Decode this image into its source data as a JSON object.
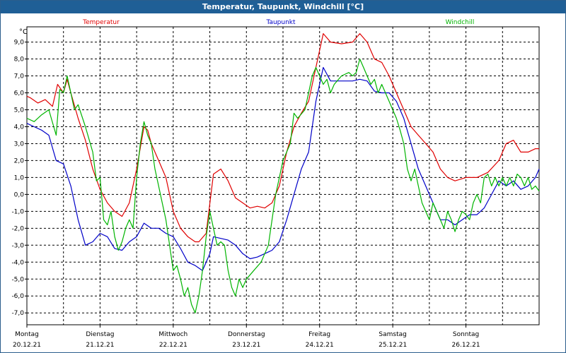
{
  "window": {
    "title": "Temperatur, Taupunkt, Windchill [°C]"
  },
  "chart_data": {
    "type": "line",
    "title": "Temperatur, Taupunkt, Windchill [°C]",
    "ylabel": "°C",
    "ylim": [
      -7.7,
      9.9
    ],
    "yticks": [
      "9,0",
      "8,0",
      "7,0",
      "6,0",
      "5,0",
      "4,0",
      "3,0",
      "2,0",
      "1,0",
      "0,0",
      "-1,0",
      "-2,0",
      "-3,0",
      "-4,0",
      "-5,0",
      "-6,0",
      "-7,0"
    ],
    "xlim": [
      0,
      7
    ],
    "days": [
      {
        "weekday": "Montag",
        "date": "20.12.21"
      },
      {
        "weekday": "Dienstag",
        "date": "21.12.21"
      },
      {
        "weekday": "Mittwoch",
        "date": "22.12.21"
      },
      {
        "weekday": "Donnerstag",
        "date": "23.12.21"
      },
      {
        "weekday": "Freitag",
        "date": "24.12.21"
      },
      {
        "weekday": "Samstag",
        "date": "25.12.21"
      },
      {
        "weekday": "Sonntag",
        "date": "26.12.21"
      }
    ],
    "grid": true,
    "series": [
      {
        "name": "Temperatur",
        "color": "#e00000",
        "points": [
          [
            0,
            5.8
          ],
          [
            0.05,
            5.7
          ],
          [
            0.15,
            5.4
          ],
          [
            0.25,
            5.6
          ],
          [
            0.35,
            5.2
          ],
          [
            0.42,
            6.5
          ],
          [
            0.5,
            6.0
          ],
          [
            0.55,
            6.8
          ],
          [
            0.6,
            6.0
          ],
          [
            0.7,
            4.5
          ],
          [
            0.8,
            3.2
          ],
          [
            0.9,
            1.5
          ],
          [
            1.0,
            0.3
          ],
          [
            1.1,
            -0.5
          ],
          [
            1.2,
            -1.0
          ],
          [
            1.3,
            -1.3
          ],
          [
            1.4,
            -0.5
          ],
          [
            1.5,
            1.5
          ],
          [
            1.6,
            4.0
          ],
          [
            1.65,
            3.8
          ],
          [
            1.7,
            3.0
          ],
          [
            1.8,
            2.0
          ],
          [
            1.9,
            1.0
          ],
          [
            2.0,
            -1.0
          ],
          [
            2.1,
            -2.0
          ],
          [
            2.2,
            -2.5
          ],
          [
            2.3,
            -2.8
          ],
          [
            2.35,
            -2.8
          ],
          [
            2.45,
            -2.3
          ],
          [
            2.55,
            1.2
          ],
          [
            2.65,
            1.5
          ],
          [
            2.75,
            0.8
          ],
          [
            2.85,
            -0.2
          ],
          [
            2.95,
            -0.5
          ],
          [
            3.05,
            -0.8
          ],
          [
            3.15,
            -0.7
          ],
          [
            3.25,
            -0.8
          ],
          [
            3.35,
            -0.5
          ],
          [
            3.45,
            0.5
          ],
          [
            3.55,
            2.5
          ],
          [
            3.65,
            4.0
          ],
          [
            3.75,
            4.8
          ],
          [
            3.85,
            5.5
          ],
          [
            3.95,
            7.5
          ],
          [
            4.05,
            9.5
          ],
          [
            4.15,
            9.0
          ],
          [
            4.3,
            8.9
          ],
          [
            4.45,
            9.0
          ],
          [
            4.55,
            9.5
          ],
          [
            4.65,
            9.0
          ],
          [
            4.75,
            8.0
          ],
          [
            4.85,
            7.8
          ],
          [
            4.95,
            7.0
          ],
          [
            5.05,
            6.0
          ],
          [
            5.15,
            5.0
          ],
          [
            5.25,
            4.0
          ],
          [
            5.35,
            3.5
          ],
          [
            5.45,
            3.0
          ],
          [
            5.55,
            2.5
          ],
          [
            5.65,
            1.5
          ],
          [
            5.75,
            1.0
          ],
          [
            5.85,
            0.8
          ],
          [
            6.0,
            1.0
          ],
          [
            6.15,
            1.0
          ],
          [
            6.3,
            1.3
          ],
          [
            6.45,
            2.0
          ],
          [
            6.55,
            3.0
          ],
          [
            6.65,
            3.2
          ],
          [
            6.75,
            2.5
          ],
          [
            6.85,
            2.5
          ],
          [
            6.95,
            2.7
          ],
          [
            7.0,
            2.7
          ]
        ]
      },
      {
        "name": "Taupunkt",
        "color": "#0000c8",
        "points": [
          [
            0,
            4.2
          ],
          [
            0.1,
            4.0
          ],
          [
            0.2,
            3.8
          ],
          [
            0.3,
            3.5
          ],
          [
            0.4,
            2.0
          ],
          [
            0.5,
            1.8
          ],
          [
            0.6,
            0.5
          ],
          [
            0.7,
            -1.5
          ],
          [
            0.8,
            -3.0
          ],
          [
            0.9,
            -2.8
          ],
          [
            1.0,
            -2.3
          ],
          [
            1.1,
            -2.5
          ],
          [
            1.2,
            -3.2
          ],
          [
            1.3,
            -3.3
          ],
          [
            1.4,
            -2.8
          ],
          [
            1.5,
            -2.5
          ],
          [
            1.6,
            -1.7
          ],
          [
            1.7,
            -2.0
          ],
          [
            1.8,
            -2.0
          ],
          [
            1.9,
            -2.3
          ],
          [
            2.0,
            -2.5
          ],
          [
            2.1,
            -3.2
          ],
          [
            2.2,
            -4.0
          ],
          [
            2.3,
            -4.2
          ],
          [
            2.4,
            -4.5
          ],
          [
            2.5,
            -3.5
          ],
          [
            2.55,
            -2.5
          ],
          [
            2.65,
            -2.6
          ],
          [
            2.75,
            -2.7
          ],
          [
            2.85,
            -3.0
          ],
          [
            2.95,
            -3.5
          ],
          [
            3.05,
            -3.8
          ],
          [
            3.15,
            -3.7
          ],
          [
            3.25,
            -3.5
          ],
          [
            3.35,
            -3.3
          ],
          [
            3.45,
            -2.8
          ],
          [
            3.55,
            -1.5
          ],
          [
            3.65,
            0.0
          ],
          [
            3.75,
            1.5
          ],
          [
            3.85,
            2.5
          ],
          [
            3.95,
            5.5
          ],
          [
            4.05,
            7.5
          ],
          [
            4.15,
            6.7
          ],
          [
            4.3,
            6.7
          ],
          [
            4.45,
            6.7
          ],
          [
            4.55,
            6.8
          ],
          [
            4.65,
            6.7
          ],
          [
            4.75,
            6.1
          ],
          [
            4.85,
            6.0
          ],
          [
            4.95,
            6.0
          ],
          [
            5.05,
            5.5
          ],
          [
            5.15,
            4.5
          ],
          [
            5.25,
            3.0
          ],
          [
            5.35,
            1.5
          ],
          [
            5.45,
            0.5
          ],
          [
            5.55,
            -0.5
          ],
          [
            5.65,
            -1.5
          ],
          [
            5.75,
            -1.5
          ],
          [
            5.85,
            -1.8
          ],
          [
            5.95,
            -1.5
          ],
          [
            6.05,
            -1.2
          ],
          [
            6.15,
            -1.2
          ],
          [
            6.25,
            -0.8
          ],
          [
            6.35,
            0.0
          ],
          [
            6.45,
            0.8
          ],
          [
            6.55,
            0.5
          ],
          [
            6.65,
            0.8
          ],
          [
            6.75,
            0.3
          ],
          [
            6.85,
            0.5
          ],
          [
            6.95,
            1.0
          ],
          [
            7.0,
            1.5
          ]
        ]
      },
      {
        "name": "Windchill",
        "color": "#00b400",
        "points": [
          [
            0,
            4.5
          ],
          [
            0.1,
            4.3
          ],
          [
            0.2,
            4.7
          ],
          [
            0.3,
            5.0
          ],
          [
            0.4,
            3.5
          ],
          [
            0.45,
            6.2
          ],
          [
            0.5,
            6.0
          ],
          [
            0.55,
            7.0
          ],
          [
            0.6,
            6.0
          ],
          [
            0.65,
            5.0
          ],
          [
            0.7,
            5.3
          ],
          [
            0.8,
            4.0
          ],
          [
            0.9,
            2.5
          ],
          [
            0.95,
            0.8
          ],
          [
            1.0,
            1.0
          ],
          [
            1.05,
            -1.5
          ],
          [
            1.1,
            -1.8
          ],
          [
            1.15,
            -1.0
          ],
          [
            1.2,
            -2.5
          ],
          [
            1.25,
            -3.3
          ],
          [
            1.3,
            -2.8
          ],
          [
            1.35,
            -2.0
          ],
          [
            1.4,
            -1.5
          ],
          [
            1.45,
            -2.0
          ],
          [
            1.5,
            1.0
          ],
          [
            1.55,
            3.0
          ],
          [
            1.6,
            4.3
          ],
          [
            1.65,
            3.5
          ],
          [
            1.7,
            3.0
          ],
          [
            1.75,
            1.5
          ],
          [
            1.8,
            0.5
          ],
          [
            1.85,
            -0.5
          ],
          [
            1.9,
            -1.5
          ],
          [
            1.95,
            -3.0
          ],
          [
            2.0,
            -4.5
          ],
          [
            2.05,
            -4.2
          ],
          [
            2.1,
            -5.0
          ],
          [
            2.15,
            -6.0
          ],
          [
            2.2,
            -5.5
          ],
          [
            2.25,
            -6.5
          ],
          [
            2.3,
            -7.0
          ],
          [
            2.35,
            -6.0
          ],
          [
            2.4,
            -4.5
          ],
          [
            2.45,
            -2.5
          ],
          [
            2.5,
            -1.0
          ],
          [
            2.55,
            -2.0
          ],
          [
            2.6,
            -3.0
          ],
          [
            2.65,
            -2.8
          ],
          [
            2.7,
            -3.0
          ],
          [
            2.75,
            -4.5
          ],
          [
            2.8,
            -5.5
          ],
          [
            2.85,
            -6.0
          ],
          [
            2.9,
            -5.0
          ],
          [
            2.95,
            -5.5
          ],
          [
            3.0,
            -5.0
          ],
          [
            3.1,
            -4.5
          ],
          [
            3.2,
            -4.0
          ],
          [
            3.3,
            -3.0
          ],
          [
            3.4,
            0.0
          ],
          [
            3.5,
            2.0
          ],
          [
            3.6,
            3.0
          ],
          [
            3.65,
            4.8
          ],
          [
            3.7,
            4.5
          ],
          [
            3.8,
            5.0
          ],
          [
            3.9,
            7.0
          ],
          [
            3.95,
            7.5
          ],
          [
            4.0,
            7.0
          ],
          [
            4.05,
            6.5
          ],
          [
            4.1,
            6.8
          ],
          [
            4.15,
            6.0
          ],
          [
            4.2,
            6.5
          ],
          [
            4.3,
            7.0
          ],
          [
            4.4,
            7.2
          ],
          [
            4.45,
            7.0
          ],
          [
            4.5,
            7.2
          ],
          [
            4.55,
            8.0
          ],
          [
            4.6,
            7.5
          ],
          [
            4.65,
            7.0
          ],
          [
            4.7,
            6.5
          ],
          [
            4.75,
            6.8
          ],
          [
            4.8,
            6.0
          ],
          [
            4.85,
            6.5
          ],
          [
            4.9,
            6.0
          ],
          [
            4.95,
            5.5
          ],
          [
            5.0,
            5.0
          ],
          [
            5.05,
            4.5
          ],
          [
            5.1,
            3.8
          ],
          [
            5.15,
            3.0
          ],
          [
            5.2,
            1.5
          ],
          [
            5.25,
            0.8
          ],
          [
            5.3,
            1.5
          ],
          [
            5.35,
            0.5
          ],
          [
            5.4,
            -0.5
          ],
          [
            5.45,
            -1.0
          ],
          [
            5.5,
            -1.5
          ],
          [
            5.55,
            -0.5
          ],
          [
            5.6,
            -1.0
          ],
          [
            5.65,
            -1.5
          ],
          [
            5.7,
            -2.0
          ],
          [
            5.75,
            -1.0
          ],
          [
            5.8,
            -1.5
          ],
          [
            5.85,
            -2.2
          ],
          [
            5.9,
            -1.5
          ],
          [
            5.95,
            -1.0
          ],
          [
            6.0,
            -1.2
          ],
          [
            6.05,
            -1.5
          ],
          [
            6.1,
            -0.5
          ],
          [
            6.15,
            0.0
          ],
          [
            6.2,
            -0.5
          ],
          [
            6.25,
            1.0
          ],
          [
            6.3,
            1.2
          ],
          [
            6.35,
            0.5
          ],
          [
            6.4,
            1.0
          ],
          [
            6.45,
            0.5
          ],
          [
            6.5,
            1.0
          ],
          [
            6.55,
            0.5
          ],
          [
            6.6,
            1.0
          ],
          [
            6.65,
            0.5
          ],
          [
            6.7,
            1.2
          ],
          [
            6.75,
            1.0
          ],
          [
            6.8,
            0.5
          ],
          [
            6.85,
            1.0
          ],
          [
            6.9,
            0.3
          ],
          [
            6.95,
            0.5
          ],
          [
            7.0,
            0.2
          ]
        ]
      }
    ]
  }
}
